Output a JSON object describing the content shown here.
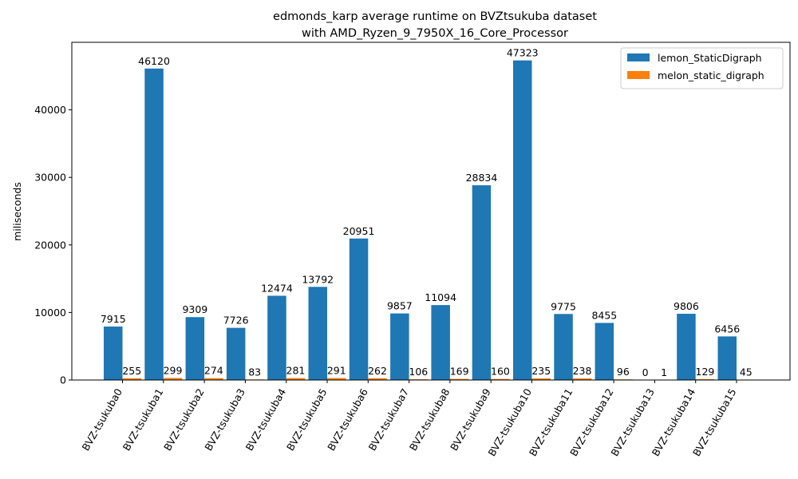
{
  "chart_data": {
    "type": "bar",
    "title": "edmonds_karp average runtime on BVZtsukuba dataset",
    "subtitle": "with AMD_Ryzen_9_7950X_16_Core_Processor",
    "xlabel": "",
    "ylabel": "miliseconds",
    "ylim": [
      0,
      50000
    ],
    "yticks": [
      0,
      10000,
      20000,
      30000,
      40000
    ],
    "grid": false,
    "legend_position": "top-right",
    "categories": [
      "BVZ-tsukuba0",
      "BVZ-tsukuba1",
      "BVZ-tsukuba2",
      "BVZ-tsukuba3",
      "BVZ-tsukuba4",
      "BVZ-tsukuba5",
      "BVZ-tsukuba6",
      "BVZ-tsukuba7",
      "BVZ-tsukuba8",
      "BVZ-tsukuba9",
      "BVZ-tsukuba10",
      "BVZ-tsukuba11",
      "BVZ-tsukuba12",
      "BVZ-tsukuba13",
      "BVZ-tsukuba14",
      "BVZ-tsukuba15"
    ],
    "series": [
      {
        "name": "lemon_StaticDigraph",
        "color": "#1f77b4",
        "values": [
          7915,
          46120,
          9309,
          7726,
          12474,
          13792,
          20951,
          9857,
          11094,
          28834,
          47323,
          9775,
          8455,
          0,
          9806,
          6456
        ],
        "labels": [
          "7915",
          "46120",
          "9309",
          "7726",
          "12474",
          "13792",
          "20951",
          "9857",
          "11094",
          "28834",
          "47323",
          "9775",
          "8455",
          "0",
          "9806",
          "6456"
        ]
      },
      {
        "name": "melon_static_digraph",
        "color": "#ff7f0e",
        "values": [
          255,
          299,
          274,
          83,
          281,
          291,
          262,
          106,
          169,
          160,
          235,
          238,
          96,
          1,
          129,
          45
        ],
        "labels": [
          "255",
          "299",
          "274",
          "83",
          "281",
          "291",
          "262",
          "106",
          "169",
          "160",
          "235",
          "238",
          "96",
          "1",
          "129",
          "45"
        ]
      }
    ]
  }
}
